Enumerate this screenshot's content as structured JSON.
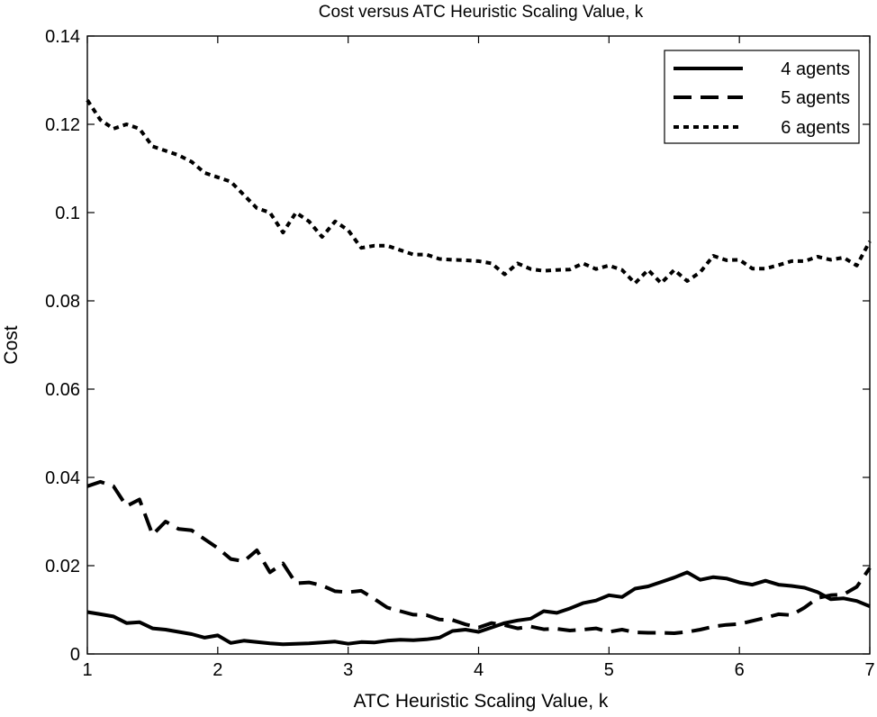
{
  "chart_data": {
    "type": "line",
    "title": "Cost versus ATC Heuristic Scaling Value, k",
    "xlabel": "ATC Heuristic Scaling Value, k",
    "ylabel": "Cost",
    "xlim": [
      1,
      7
    ],
    "ylim": [
      0,
      0.14
    ],
    "xticks": [
      1,
      2,
      3,
      4,
      5,
      6,
      7
    ],
    "xtick_labels": [
      "1",
      "2",
      "3",
      "4",
      "5",
      "6",
      "7"
    ],
    "yticks": [
      0,
      0.02,
      0.04,
      0.06,
      0.08,
      0.1,
      0.12,
      0.14
    ],
    "ytick_labels": [
      "0",
      "0.02",
      "0.04",
      "0.06",
      "0.08",
      "0.1",
      "0.12",
      "0.14"
    ],
    "grid": false,
    "legend_position": "top-right",
    "x": [
      1.0,
      1.1,
      1.2,
      1.3,
      1.4,
      1.5,
      1.6,
      1.7,
      1.8,
      1.9,
      2.0,
      2.1,
      2.2,
      2.3,
      2.4,
      2.5,
      2.6,
      2.7,
      2.8,
      2.9,
      3.0,
      3.1,
      3.2,
      3.3,
      3.4,
      3.5,
      3.6,
      3.7,
      3.8,
      3.9,
      4.0,
      4.1,
      4.2,
      4.3,
      4.4,
      4.5,
      4.6,
      4.7,
      4.8,
      4.9,
      5.0,
      5.1,
      5.2,
      5.3,
      5.4,
      5.5,
      5.6,
      5.7,
      5.8,
      5.9,
      6.0,
      6.1,
      6.2,
      6.3,
      6.4,
      6.5,
      6.6,
      6.7,
      6.8,
      6.9,
      7.0
    ],
    "series": [
      {
        "name": "4 agents",
        "style": "solid",
        "values": [
          0.0095,
          0.009,
          0.0085,
          0.007,
          0.0072,
          0.0058,
          0.0055,
          0.005,
          0.0045,
          0.0037,
          0.0042,
          0.0025,
          0.003,
          0.0027,
          0.0024,
          0.0022,
          0.0023,
          0.0024,
          0.0026,
          0.0028,
          0.0023,
          0.0027,
          0.0026,
          0.003,
          0.0032,
          0.0031,
          0.0033,
          0.0037,
          0.0052,
          0.0055,
          0.005,
          0.006,
          0.007,
          0.0076,
          0.008,
          0.0097,
          0.0093,
          0.0103,
          0.0115,
          0.0121,
          0.0133,
          0.0129,
          0.0148,
          0.0153,
          0.0163,
          0.0173,
          0.0185,
          0.0168,
          0.0174,
          0.0171,
          0.0162,
          0.0157,
          0.0166,
          0.0157,
          0.0154,
          0.015,
          0.014,
          0.0124,
          0.0126,
          0.012,
          0.0108
        ]
      },
      {
        "name": "5 agents",
        "style": "dashed",
        "values": [
          0.038,
          0.039,
          0.038,
          0.0335,
          0.035,
          0.027,
          0.03,
          0.0283,
          0.028,
          0.026,
          0.024,
          0.0215,
          0.021,
          0.0235,
          0.0185,
          0.0205,
          0.016,
          0.0162,
          0.0155,
          0.0142,
          0.014,
          0.0143,
          0.0125,
          0.0105,
          0.0097,
          0.0089,
          0.0088,
          0.0078,
          0.0077,
          0.0067,
          0.006,
          0.007,
          0.0065,
          0.0058,
          0.0062,
          0.0056,
          0.0057,
          0.0053,
          0.0055,
          0.0058,
          0.005,
          0.0055,
          0.0049,
          0.0048,
          0.0048,
          0.0047,
          0.005,
          0.0055,
          0.0062,
          0.0066,
          0.0068,
          0.0075,
          0.0082,
          0.009,
          0.0088,
          0.0105,
          0.0127,
          0.0133,
          0.0135,
          0.0152,
          0.0195
        ]
      },
      {
        "name": "6 agents",
        "style": "dotted",
        "values": [
          0.1255,
          0.121,
          0.119,
          0.12,
          0.119,
          0.115,
          0.114,
          0.113,
          0.1115,
          0.109,
          0.108,
          0.107,
          0.104,
          0.101,
          0.1,
          0.0955,
          0.1,
          0.098,
          0.0945,
          0.098,
          0.096,
          0.092,
          0.0925,
          0.0925,
          0.0915,
          0.0905,
          0.0905,
          0.0895,
          0.0893,
          0.0892,
          0.089,
          0.0885,
          0.086,
          0.0885,
          0.0872,
          0.0868,
          0.087,
          0.0871,
          0.0885,
          0.0872,
          0.088,
          0.087,
          0.084,
          0.087,
          0.084,
          0.087,
          0.0845,
          0.0865,
          0.0902,
          0.0892,
          0.0893,
          0.0873,
          0.0873,
          0.0881,
          0.089,
          0.089,
          0.09,
          0.0893,
          0.0898,
          0.088,
          0.0935
        ]
      }
    ]
  }
}
